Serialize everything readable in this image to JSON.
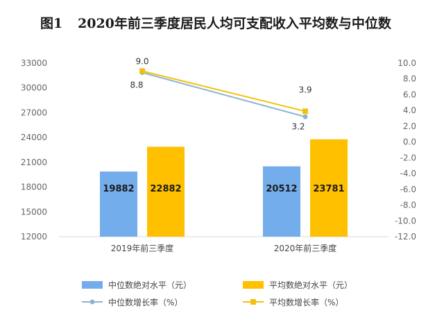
{
  "chart_data": {
    "type": "bar",
    "title_prefix": "图1",
    "title": "2020年前三季度居民人均可支配收入平均数与中位数",
    "categories": [
      "2019年前三季度",
      "2020年前三季度"
    ],
    "series": [
      {
        "name": "中位数绝对水平（元）",
        "kind": "bar",
        "axis": "left",
        "color": "#74ADEB",
        "values": [
          19882,
          20512
        ]
      },
      {
        "name": "平均数绝对水平（元）",
        "kind": "bar",
        "axis": "left",
        "color": "#FFC000",
        "values": [
          22882,
          23781
        ]
      },
      {
        "name": "中位数增长率（%）",
        "kind": "line",
        "axis": "right",
        "color": "#8DB6CE",
        "values": [
          8.8,
          3.2
        ]
      },
      {
        "name": "平均数增长率（%）",
        "kind": "line",
        "axis": "right",
        "color": "#F2C10F",
        "values": [
          9.0,
          3.9
        ]
      }
    ],
    "y_left": {
      "min": 12000,
      "max": 33000,
      "ticks": [
        "12000",
        "15000",
        "18000",
        "21000",
        "24000",
        "27000",
        "30000",
        "33000"
      ]
    },
    "y_right": {
      "min": -12.0,
      "max": 10.0,
      "ticks": [
        "-12.0",
        "-10.0",
        "-8.0",
        "-6.0",
        "-4.0",
        "-2.0",
        "0.0",
        "2.0",
        "4.0",
        "6.0",
        "8.0",
        "10.0"
      ]
    },
    "grid": false,
    "legend_position": "bottom"
  }
}
